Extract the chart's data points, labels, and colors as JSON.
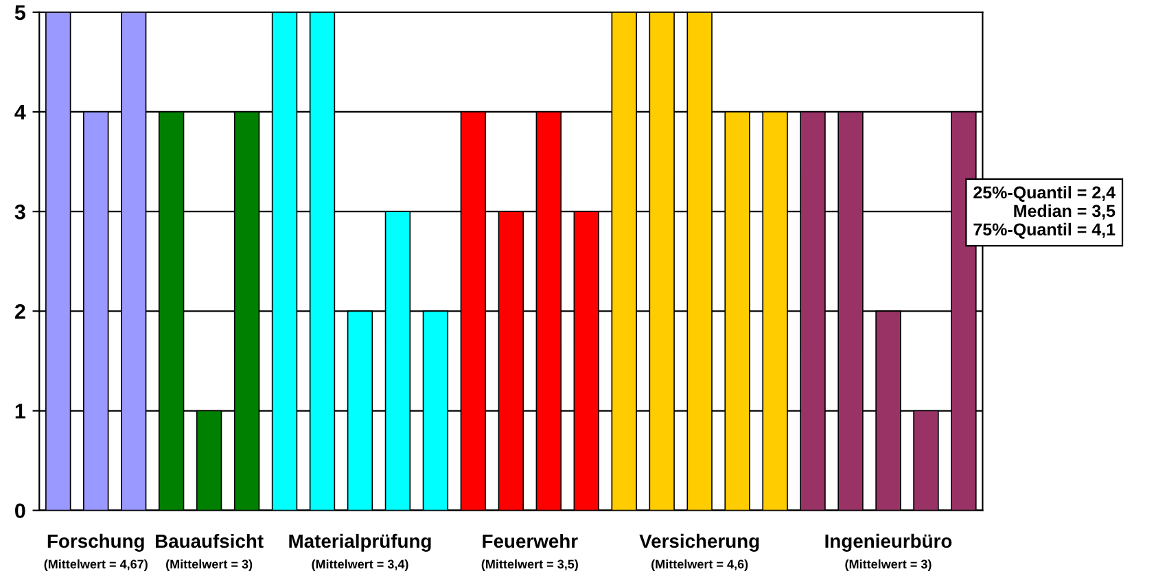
{
  "chart_data": {
    "type": "bar",
    "categories": [
      null,
      null,
      null,
      null,
      null,
      null,
      null,
      null,
      null,
      null,
      null,
      null,
      null,
      null,
      null,
      null,
      null,
      null,
      null,
      null,
      null,
      null,
      null,
      null,
      null
    ],
    "series": [
      {
        "name": "Forschung",
        "color": "#9999ff",
        "values": [
          5,
          4,
          5,
          null,
          null,
          null,
          null,
          null,
          null,
          null,
          null,
          null,
          null,
          null,
          null,
          null,
          null,
          null,
          null,
          null,
          null,
          null,
          null,
          null,
          null
        ]
      },
      {
        "name": "Bauaufsicht",
        "color": "#008000",
        "values": [
          null,
          null,
          null,
          4,
          1,
          4,
          null,
          null,
          null,
          null,
          null,
          null,
          null,
          null,
          null,
          null,
          null,
          null,
          null,
          null,
          null,
          null,
          null,
          null,
          null
        ]
      },
      {
        "name": "Materialprüfung",
        "color": "#00ffff",
        "values": [
          null,
          null,
          null,
          null,
          null,
          null,
          5,
          5,
          2,
          3,
          2,
          null,
          null,
          null,
          null,
          null,
          null,
          null,
          null,
          null,
          null,
          null,
          null,
          null,
          null
        ]
      },
      {
        "name": "Feuerwehr",
        "color": "#ff0000",
        "values": [
          null,
          null,
          null,
          null,
          null,
          null,
          null,
          null,
          null,
          null,
          null,
          4,
          3,
          4,
          3,
          null,
          null,
          null,
          null,
          null,
          null,
          null,
          null,
          null,
          null
        ]
      },
      {
        "name": "Versicherung",
        "color": "#ffcc00",
        "values": [
          null,
          null,
          null,
          null,
          null,
          null,
          null,
          null,
          null,
          null,
          null,
          null,
          null,
          null,
          null,
          5,
          5,
          5,
          4,
          4,
          null,
          null,
          null,
          null,
          null
        ]
      },
      {
        "name": "Ingenieurbüro",
        "color": "#993366",
        "values": [
          null,
          null,
          null,
          null,
          null,
          null,
          null,
          null,
          null,
          null,
          null,
          null,
          null,
          null,
          null,
          null,
          null,
          null,
          null,
          null,
          4,
          4,
          2,
          1,
          4
        ]
      }
    ],
    "annotations": [
      "(Mittelwert = 4,67)",
      "(Mittelwert = 3)",
      "(Mittelwert = 3,4)",
      "(Mittelwert = 3,5)",
      "(Mittelwert = 4,6)",
      "(Mittelwert = 3)",
      "25%-Quantil = 2,4\nMedian = 3,5\n75%-Quantil = 4,1"
    ],
    "ylim": [
      0,
      5
    ],
    "yticks": [
      0,
      1,
      2,
      3,
      4,
      5
    ],
    "grid": "y",
    "legend": false
  }
}
